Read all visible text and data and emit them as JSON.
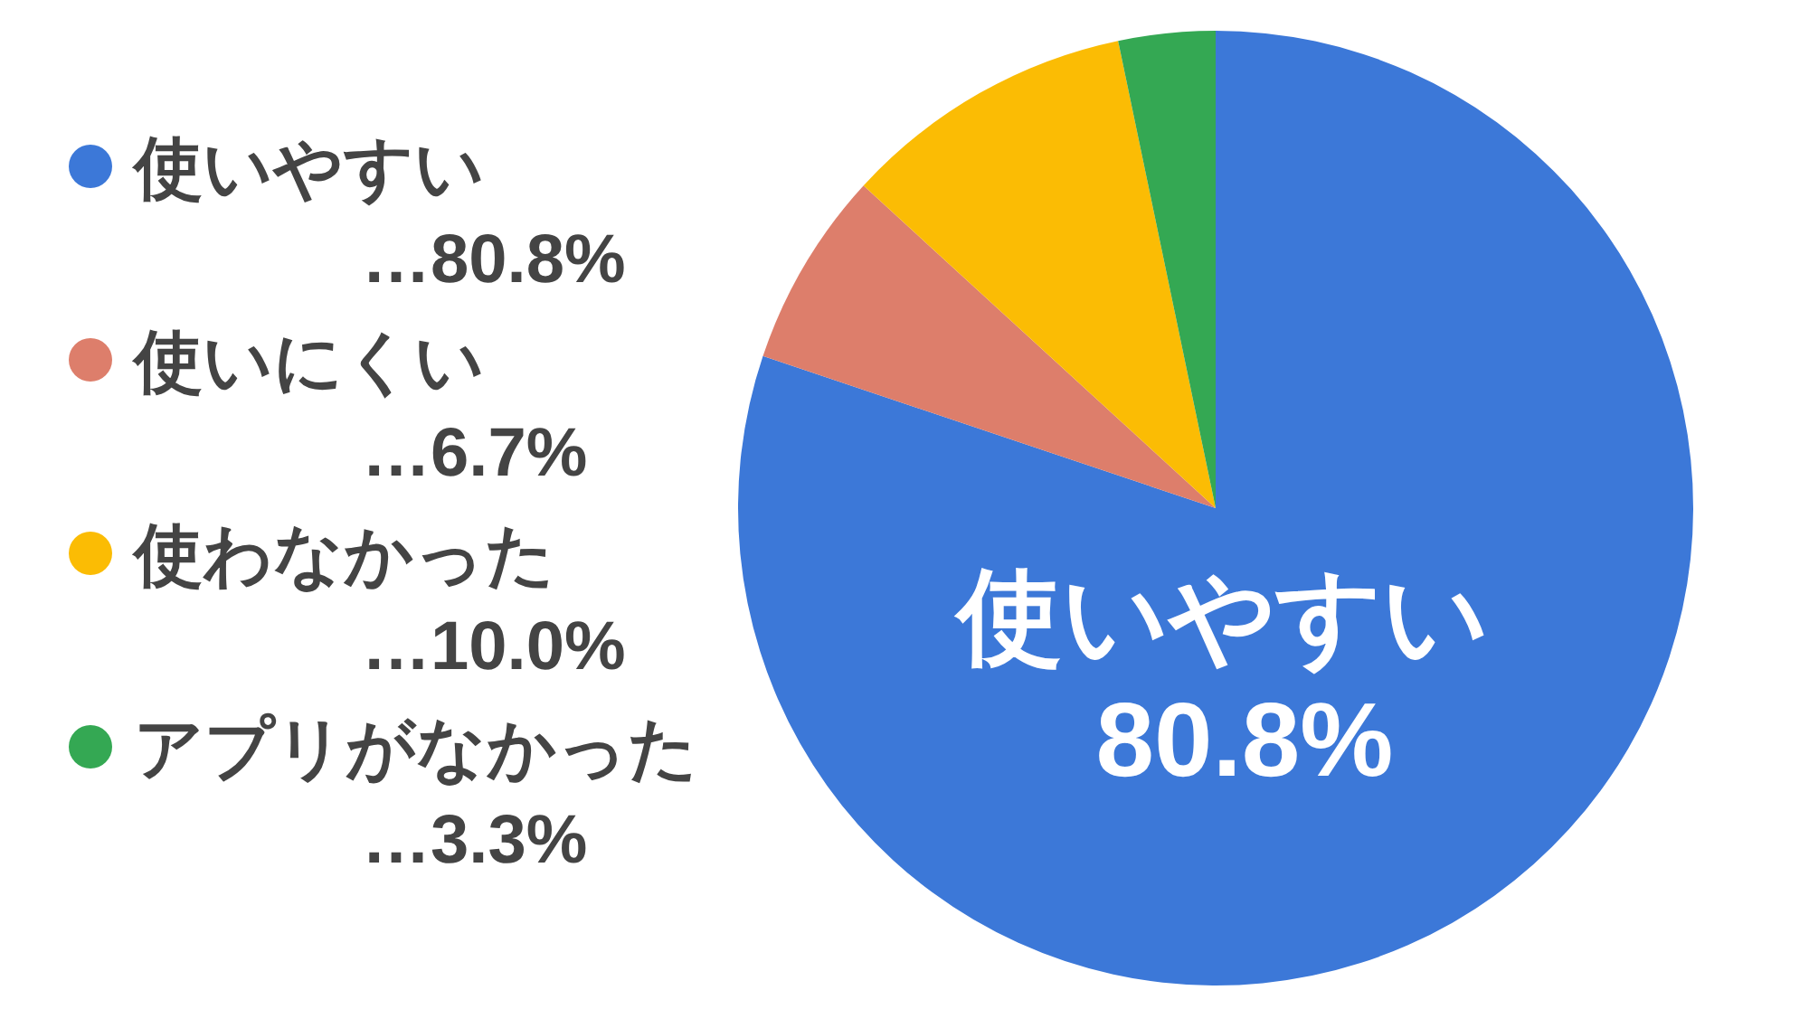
{
  "chart_data": {
    "type": "pie",
    "categories": [
      "使いやすい",
      "使いにくい",
      "使わなかった",
      "アプリがなかった"
    ],
    "values": [
      80.8,
      6.7,
      10.0,
      3.3
    ],
    "colors": [
      "#3c78d8",
      "#dd7e6b",
      "#fbbc04",
      "#34a853"
    ],
    "value_labels": [
      "…80.8%",
      "…6.7%",
      "…10.0%",
      "…3.3%"
    ],
    "legend": "left",
    "annotations": [
      "使いやすい",
      "80.8%"
    ]
  }
}
